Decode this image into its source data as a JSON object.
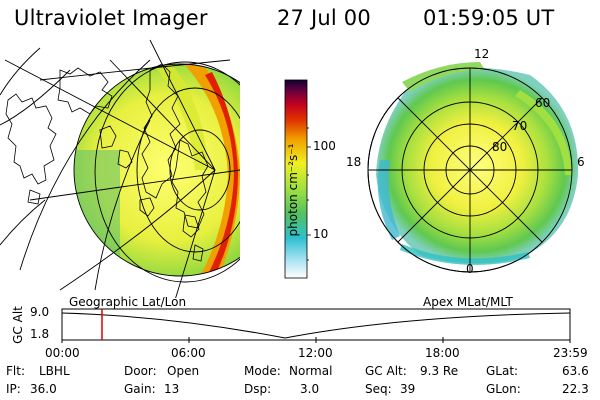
{
  "header": {
    "title": "Ultraviolet Imager",
    "date": "27 Jul 00",
    "time": "01:59:05 UT"
  },
  "colorbar": {
    "label": "photon cm⁻²s⁻¹",
    "ticks": [
      "100",
      "10"
    ]
  },
  "left_panel": {
    "caption": "Geographic Lat/Lon"
  },
  "right_panel": {
    "caption": "Apex MLat/MLT",
    "mlt_labels": [
      "12",
      "18",
      "6",
      "0"
    ],
    "lat_labels": [
      "60",
      "70",
      "80"
    ]
  },
  "altitude_plot": {
    "axis_label": "GC Alt",
    "y_ticks": [
      "9.0",
      "1.8"
    ],
    "x_ticks": [
      "00:00",
      "06:00",
      "12:00",
      "18:00",
      "23:59"
    ],
    "current_time_marker": "01:59"
  },
  "info": {
    "flt": {
      "label": "Flt:",
      "value": "LBHL"
    },
    "ip": {
      "label": "IP:",
      "value": "36.0"
    },
    "door": {
      "label": "Door:",
      "value": "Open"
    },
    "gain": {
      "label": "Gain:",
      "value": "13"
    },
    "mode": {
      "label": "Mode:",
      "value": "Normal"
    },
    "dsp": {
      "label": "Dsp:",
      "value": "3.0"
    },
    "gcalt": {
      "label": "GC Alt:",
      "value": "9.3 Re"
    },
    "seq": {
      "label": "Seq:",
      "value": "39"
    },
    "glat": {
      "label": "GLat:",
      "value": "63.6"
    },
    "glon": {
      "label": "GLon:",
      "value": "22.3"
    }
  },
  "colors": {
    "accent_marker": "#e00000",
    "colorscale": [
      "#ffffff",
      "#40c0e0",
      "#20b0a0",
      "#a0e040",
      "#f0f020",
      "#f0a000",
      "#e02000",
      "#800020",
      "#000040"
    ]
  }
}
